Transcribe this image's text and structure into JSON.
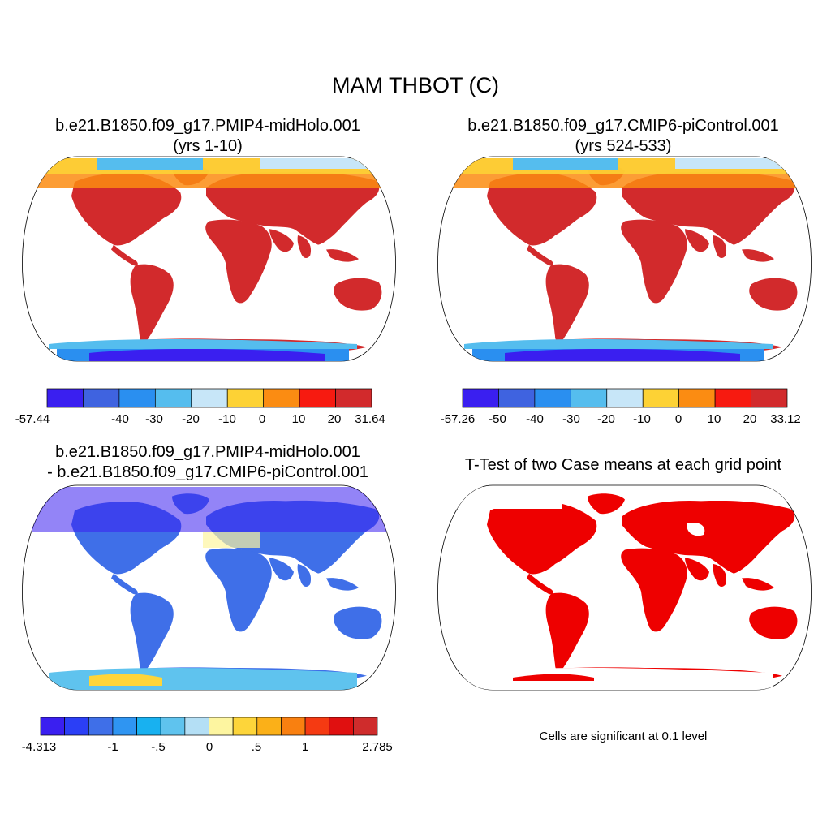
{
  "figure": {
    "title": "MAM THBOT (C)"
  },
  "panels": {
    "top_left": {
      "title_line1": "b.e21.B1850.f09_g17.PMIP4-midHolo.001",
      "title_line2": "(yrs 1-10)",
      "colorbar": {
        "colors": [
          "#3a1ff0",
          "#3f63e0",
          "#2a8ff0",
          "#55bdee",
          "#c7e6f8",
          "#fdd235",
          "#fb8c12",
          "#f71a10",
          "#d22a2c"
        ],
        "tick_labels": [
          "-57.44",
          "-40",
          "-30",
          "-20",
          "-10",
          "0",
          "10",
          "20",
          "31.64"
        ]
      }
    },
    "top_right": {
      "title_line1": "b.e21.B1850.f09_g17.CMIP6-piControl.001",
      "title_line2": "(yrs 524-533)",
      "colorbar": {
        "colors": [
          "#3a1ff0",
          "#3f63e0",
          "#2a8ff0",
          "#55bdee",
          "#c7e6f8",
          "#fdd235",
          "#fb8c12",
          "#f71a10",
          "#d22a2c"
        ],
        "tick_labels": [
          "-57.26",
          "-50",
          "-40",
          "-30",
          "-20",
          "-10",
          "0",
          "10",
          "20",
          "33.12"
        ]
      }
    },
    "bottom_left": {
      "title_line1": "b.e21.B1850.f09_g17.PMIP4-midHolo.001",
      "title_line2": "- b.e21.B1850.f09_g17.CMIP6-piControl.001",
      "colorbar": {
        "colors": [
          "#3a1ff0",
          "#2b3ff6",
          "#3f6fe8",
          "#2f95f2",
          "#18b1f0",
          "#5fc3ee",
          "#b4dff5",
          "#fdf5a0",
          "#fdd53a",
          "#fbb018",
          "#f98010",
          "#f53a12",
          "#e01010",
          "#cf2c2c"
        ],
        "tick_labels": [
          "-4.313",
          "-1",
          "-.5",
          "0",
          ".5",
          "1",
          "2.785"
        ]
      }
    },
    "bottom_right": {
      "title": "T-Test of two Case means at each grid point",
      "note": "Cells are significant at 0.1 level",
      "significance_color": "#ee0000"
    }
  }
}
